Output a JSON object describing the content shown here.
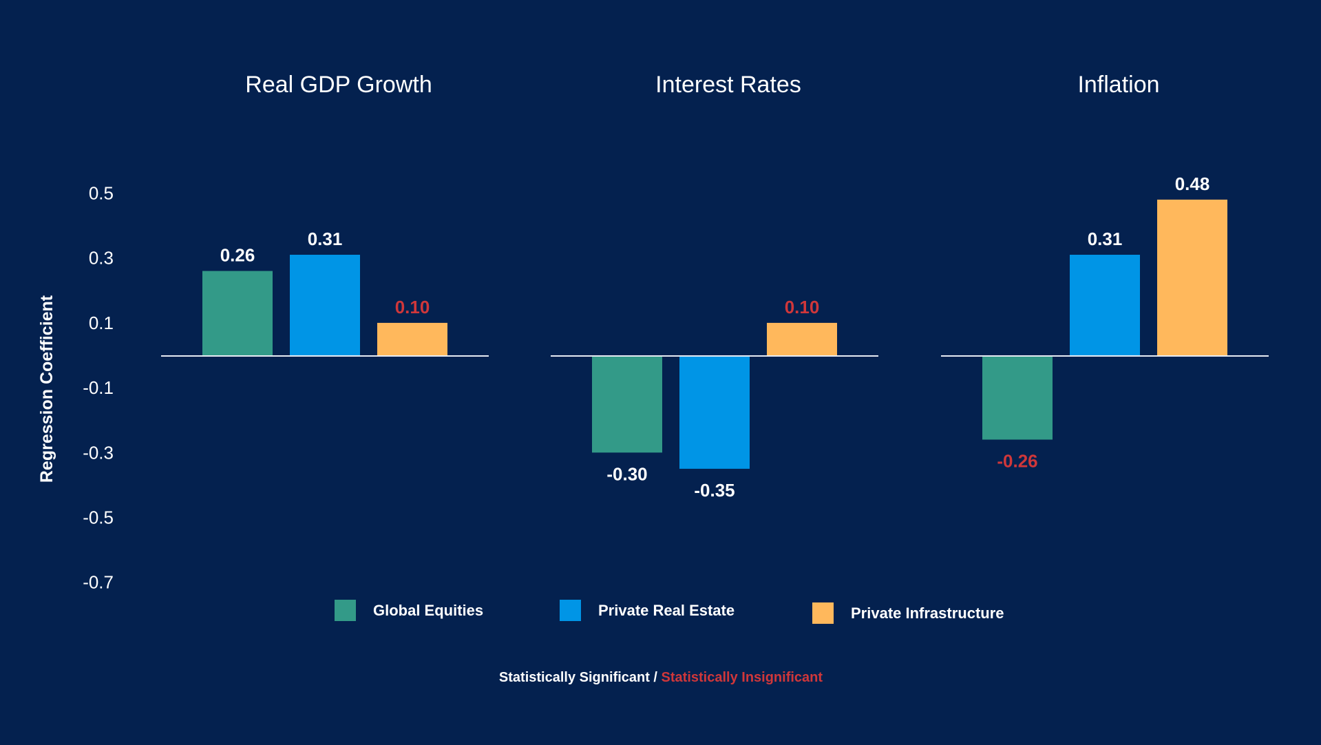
{
  "chart_data": {
    "type": "bar",
    "ylabel": "Regression Coefficient",
    "yticks": [
      "0.5",
      "0.3",
      "0.1",
      "-0.1",
      "-0.3",
      "-0.5",
      "-0.7"
    ],
    "ylim": [
      -0.7,
      0.5
    ],
    "grid": false,
    "legend_placement": "bottom",
    "panels": [
      {
        "title": "Real GDP Growth",
        "values": [
          0.26,
          0.31,
          0.1
        ],
        "labels": [
          "0.26",
          "0.31",
          "0.10"
        ],
        "significant": [
          true,
          true,
          false
        ]
      },
      {
        "title": "Interest Rates",
        "values": [
          -0.3,
          -0.35,
          0.1
        ],
        "labels": [
          "-0.30",
          "-0.35",
          "0.10"
        ],
        "significant": [
          true,
          true,
          false
        ]
      },
      {
        "title": "Inflation",
        "values": [
          -0.26,
          0.31,
          0.48
        ],
        "labels": [
          "-0.26",
          "0.31",
          "0.48"
        ],
        "significant": [
          false,
          true,
          true
        ]
      }
    ],
    "series": [
      {
        "name": "Global Equities",
        "color": "#339a88"
      },
      {
        "name": "Private Real Estate",
        "color": "#0095e6"
      },
      {
        "name": "Private Infrastructure",
        "color": "#ffb85c"
      }
    ],
    "colors": {
      "significant": "#ffffff",
      "insignificant": "#d0373a",
      "background": "#04214f"
    }
  },
  "footnote": {
    "significant": "Statistically Significant",
    "separator": " / ",
    "insignificant": "Statistically Insignificant"
  }
}
